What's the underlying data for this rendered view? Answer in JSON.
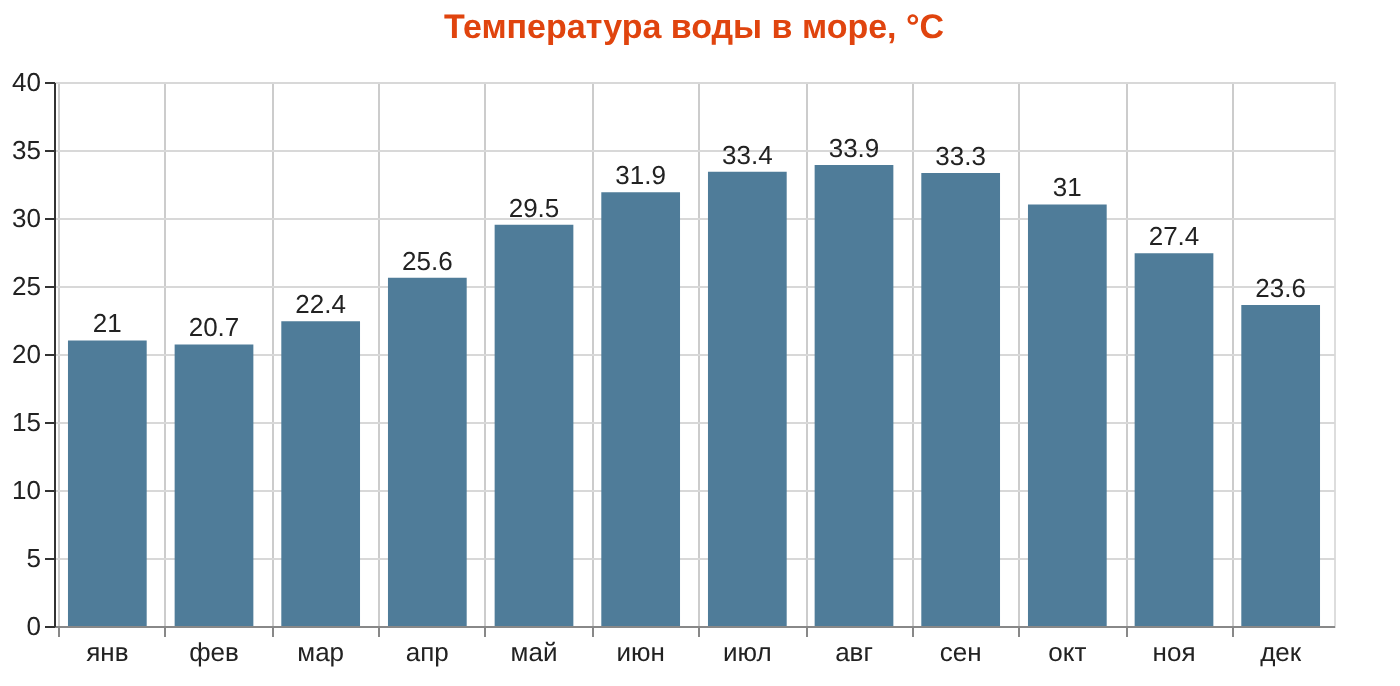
{
  "chart_data": {
    "type": "bar",
    "title": "Температура воды в море, °C",
    "categories": [
      "янв",
      "фев",
      "мар",
      "апр",
      "май",
      "июн",
      "июл",
      "авг",
      "сен",
      "окт",
      "ноя",
      "дек"
    ],
    "values": [
      21,
      20.7,
      22.4,
      25.6,
      29.5,
      31.9,
      33.4,
      33.9,
      33.3,
      31,
      27.4,
      23.6
    ],
    "color": "#4f7c99",
    "ylim": [
      0,
      40
    ],
    "yticks": [
      0,
      5,
      10,
      15,
      20,
      25,
      30,
      35,
      40
    ],
    "grid": true,
    "data_labels": true
  }
}
